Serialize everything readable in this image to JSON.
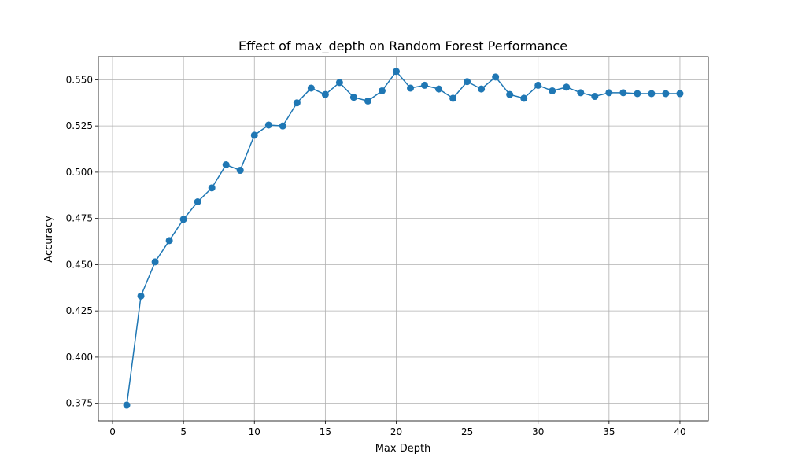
{
  "chart_data": {
    "type": "line",
    "title": "Effect of max_depth on Random Forest Performance",
    "xlabel": "Max Depth",
    "ylabel": "Accuracy",
    "xlim": [
      -1,
      42
    ],
    "ylim": [
      0.3655,
      0.5625
    ],
    "xticks": [
      0,
      5,
      10,
      15,
      20,
      25,
      30,
      35,
      40
    ],
    "xtick_labels": [
      "0",
      "5",
      "10",
      "15",
      "20",
      "25",
      "30",
      "35",
      "40"
    ],
    "yticks": [
      0.375,
      0.4,
      0.425,
      0.45,
      0.475,
      0.5,
      0.525,
      0.55
    ],
    "ytick_labels": [
      "0.375",
      "0.400",
      "0.425",
      "0.450",
      "0.475",
      "0.500",
      "0.525",
      "0.550"
    ],
    "grid": true,
    "series": [
      {
        "color": "#1f77b4",
        "marker": "circle",
        "x": [
          1,
          2,
          3,
          4,
          5,
          6,
          7,
          8,
          9,
          10,
          11,
          12,
          13,
          14,
          15,
          16,
          17,
          18,
          19,
          20,
          21,
          22,
          23,
          24,
          25,
          26,
          27,
          28,
          29,
          30,
          31,
          32,
          33,
          34,
          35,
          36,
          37,
          38,
          39,
          40
        ],
        "y": [
          0.374,
          0.433,
          0.4515,
          0.463,
          0.4745,
          0.484,
          0.4915,
          0.504,
          0.501,
          0.52,
          0.5255,
          0.525,
          0.5375,
          0.5455,
          0.542,
          0.5485,
          0.5405,
          0.5385,
          0.544,
          0.5545,
          0.5455,
          0.547,
          0.545,
          0.54,
          0.549,
          0.545,
          0.5515,
          0.542,
          0.54,
          0.547,
          0.544,
          0.546,
          0.543,
          0.541,
          0.543,
          0.543,
          0.5425,
          0.5425,
          0.5425,
          0.5425
        ]
      }
    ]
  }
}
